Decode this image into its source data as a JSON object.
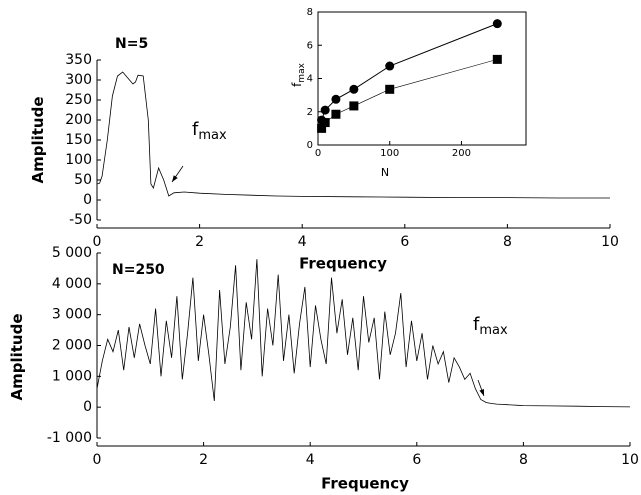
{
  "chart_data": [
    {
      "type": "line",
      "title": "N=5",
      "xlabel": "Frequency",
      "ylabel": "Amplitude",
      "annotation": {
        "text": "f",
        "subscript": "max"
      },
      "color": "#000000",
      "x": [
        0,
        0.05,
        0.1,
        0.2,
        0.3,
        0.4,
        0.5,
        0.6,
        0.7,
        0.75,
        0.8,
        0.9,
        1.0,
        1.05,
        1.1,
        1.2,
        1.3,
        1.4,
        1.5,
        1.7,
        2,
        2.5,
        3,
        3.5,
        4,
        5,
        6,
        7,
        8,
        9,
        10
      ],
      "values": [
        40,
        42,
        60,
        150,
        260,
        310,
        320,
        305,
        290,
        295,
        312,
        310,
        200,
        40,
        30,
        80,
        50,
        10,
        18,
        20,
        17,
        14,
        12,
        10,
        9,
        8,
        7,
        6,
        6,
        5,
        5
      ],
      "xlim": [
        0,
        10
      ],
      "xticks": [
        0,
        2,
        4,
        6,
        8,
        10
      ],
      "ylim": [
        -50,
        350
      ],
      "yticks": [
        -50,
        0,
        50,
        100,
        150,
        200,
        250,
        300,
        350
      ]
    },
    {
      "type": "line",
      "title": "N=250",
      "xlabel": "Frequency",
      "ylabel": "Amplitude",
      "annotation": {
        "text": "f",
        "subscript": "max"
      },
      "color": "#000000",
      "x": [
        0,
        0.1,
        0.2,
        0.3,
        0.4,
        0.5,
        0.6,
        0.7,
        0.8,
        0.9,
        1,
        1.1,
        1.2,
        1.3,
        1.4,
        1.5,
        1.6,
        1.7,
        1.8,
        1.9,
        2,
        2.1,
        2.2,
        2.3,
        2.4,
        2.5,
        2.6,
        2.7,
        2.8,
        2.9,
        3,
        3.1,
        3.2,
        3.3,
        3.4,
        3.5,
        3.6,
        3.7,
        3.8,
        3.9,
        4,
        4.1,
        4.2,
        4.3,
        4.4,
        4.5,
        4.6,
        4.7,
        4.8,
        4.9,
        5,
        5.1,
        5.2,
        5.3,
        5.4,
        5.5,
        5.6,
        5.7,
        5.8,
        5.9,
        6,
        6.1,
        6.2,
        6.3,
        6.4,
        6.5,
        6.6,
        6.7,
        6.8,
        6.9,
        7,
        7.1,
        7.2,
        7.3,
        7.4,
        7.5,
        7.6,
        7.7,
        7.8,
        7.9,
        8,
        8.5,
        9,
        9.5,
        10
      ],
      "values": [
        600,
        1500,
        2200,
        1800,
        2500,
        1200,
        2600,
        1600,
        2700,
        2000,
        1400,
        3200,
        1000,
        2800,
        1600,
        3600,
        900,
        2400,
        4200,
        1500,
        3000,
        1700,
        200,
        3800,
        1400,
        2600,
        4600,
        1200,
        3400,
        2200,
        4800,
        1000,
        3200,
        2000,
        4300,
        1500,
        3000,
        1100,
        2700,
        3900,
        1300,
        3300,
        2200,
        1400,
        4200,
        2400,
        3500,
        1700,
        2900,
        1200,
        3600,
        2100,
        2900,
        900,
        3100,
        1700,
        2400,
        3700,
        1300,
        2800,
        1500,
        2400,
        900,
        2000,
        1400,
        1800,
        800,
        1600,
        1300,
        900,
        1100,
        600,
        250,
        150,
        120,
        100,
        90,
        80,
        70,
        60,
        50,
        40,
        30,
        20,
        10
      ],
      "xlim": [
        0,
        10
      ],
      "xticks": [
        0,
        2,
        4,
        6,
        8,
        10
      ],
      "ylim": [
        -1000,
        5000
      ],
      "yticks": [
        {
          "value": -1000,
          "label": "-1 000"
        },
        0,
        {
          "value": 1000,
          "label": "1 000"
        },
        {
          "value": 2000,
          "label": "2 000"
        },
        {
          "value": 3000,
          "label": "3 000"
        },
        {
          "value": 4000,
          "label": "4 000"
        },
        {
          "value": 5000,
          "label": "5 000"
        }
      ]
    },
    {
      "type": "scatter",
      "xlabel": "N",
      "ylabel": "f",
      "ylabel_subscript": "max",
      "x": [
        5,
        10,
        25,
        50,
        100,
        250
      ],
      "series": [
        {
          "color": "#000000",
          "marker": "circle",
          "values": [
            1.5,
            2.1,
            2.75,
            3.35,
            4.75,
            7.3
          ]
        },
        {
          "color": "#000000",
          "marker": "square",
          "values": [
            1.0,
            1.35,
            1.85,
            2.35,
            3.35,
            5.15
          ]
        }
      ],
      "xlim": [
        0,
        290
      ],
      "xticks": [
        0,
        100,
        200
      ],
      "ylim": [
        0,
        8
      ],
      "yticks": [
        0,
        2,
        4,
        6,
        8
      ]
    }
  ]
}
